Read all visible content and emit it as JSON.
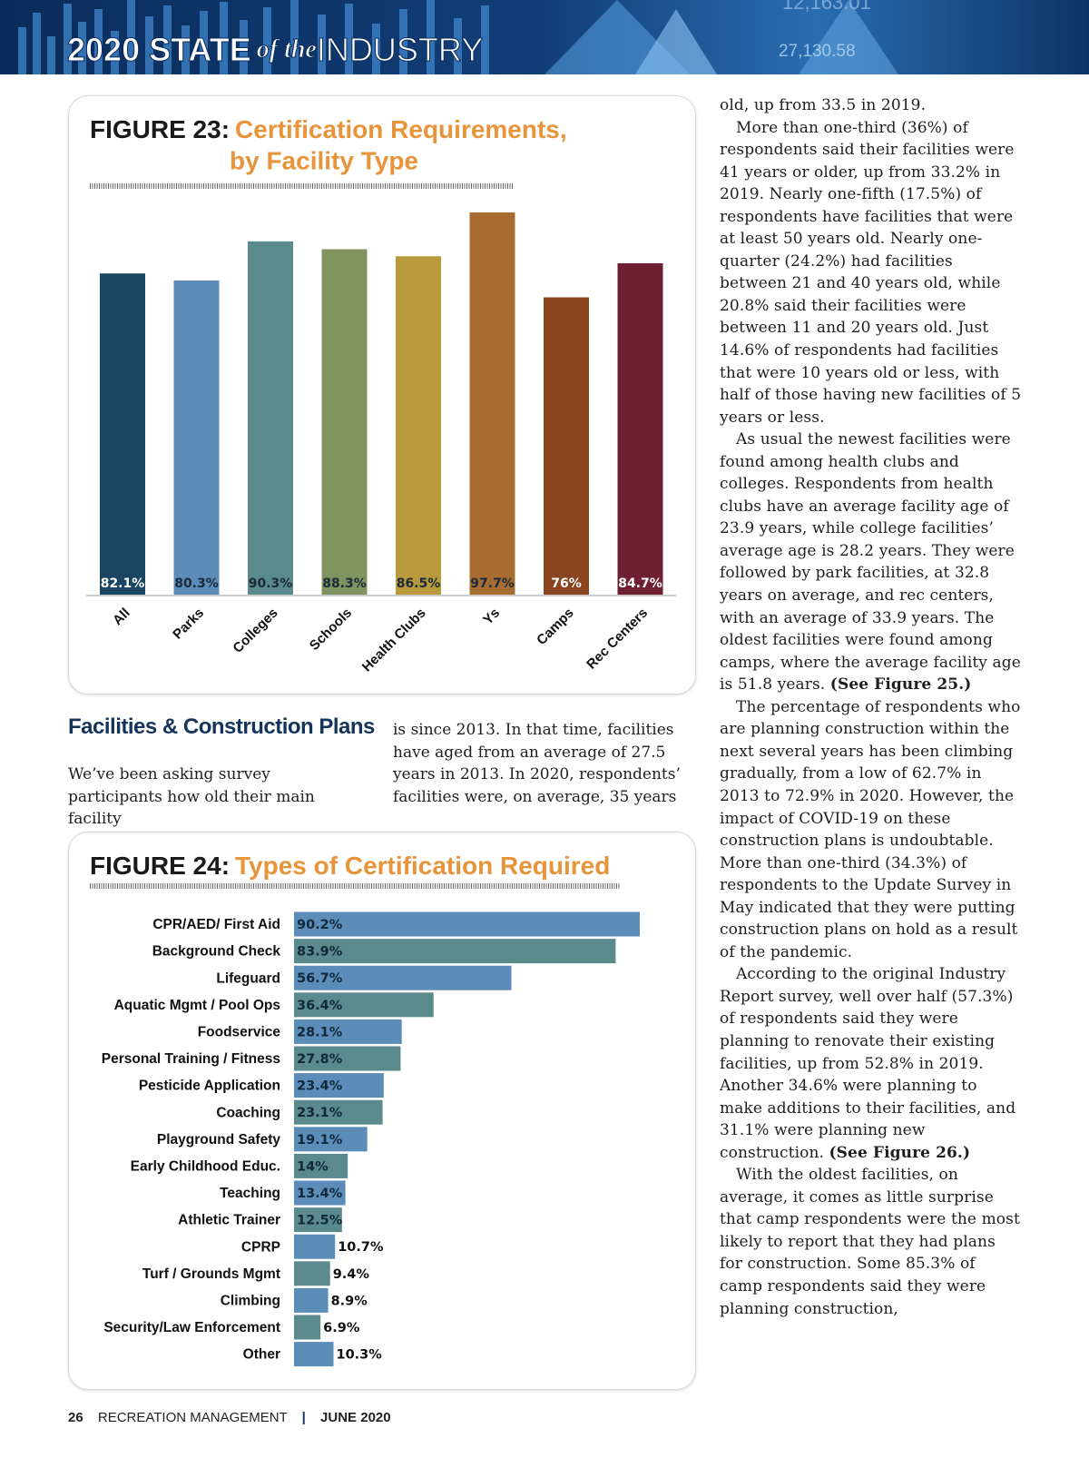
{
  "header": {
    "title_part1": "2020 STATE",
    "title_part2": "of the",
    "title_part3": "INDUSTRY",
    "ticker_1": "12,163.01",
    "ticker_2": "27,130.58"
  },
  "chart_data": [
    {
      "type": "bar",
      "figure_label": "FIGURE 23:",
      "title_lines": [
        "Certification Requirements,",
        "by Facility Type"
      ],
      "categories": [
        "All",
        "Parks",
        "Colleges",
        "Schools",
        "Health Clubs",
        "Ys",
        "Camps",
        "Rec Centers"
      ],
      "values": [
        82.1,
        80.3,
        90.3,
        88.3,
        86.5,
        97.7,
        76,
        84.7
      ],
      "value_labels": [
        "82.1%",
        "80.3%",
        "90.3%",
        "88.3%",
        "86.5%",
        "97.7%",
        "76%",
        "84.7%"
      ],
      "colors": [
        "#1a4560",
        "#5b8db8",
        "#5a8a8c",
        "#7f9460",
        "#b89a3c",
        "#a86c30",
        "#8a4520",
        "#6e1f30"
      ]
    },
    {
      "type": "hbar",
      "figure_label": "FIGURE 24:",
      "title_lines": [
        "Types of Certification Required"
      ],
      "categories": [
        "CPR/AED/ First Aid",
        "Background Check",
        "Lifeguard",
        "Aquatic Mgmt / Pool Ops",
        "Foodservice",
        "Personal Training / Fitness",
        "Pesticide Application",
        "Coaching",
        "Playground Safety",
        "Early Childhood Educ.",
        "Teaching",
        "Athletic Trainer",
        "CPRP",
        "Turf / Grounds Mgmt",
        "Climbing",
        "Security/Law Enforcement",
        "Other"
      ],
      "values": [
        90.2,
        83.9,
        56.7,
        36.4,
        28.1,
        27.8,
        23.4,
        23.1,
        19.1,
        14,
        13.4,
        12.5,
        10.7,
        9.4,
        8.9,
        6.9,
        10.3
      ],
      "value_labels": [
        "90.2%",
        "83.9%",
        "56.7%",
        "36.4%",
        "28.1%",
        "27.8%",
        "23.4%",
        "23.1%",
        "19.1%",
        "14%",
        "13.4%",
        "12.5%",
        "10.7%",
        "9.4%",
        "8.9%",
        "6.9%",
        "10.3%"
      ],
      "colors": [
        "#5b8db8",
        "#5a8a8c"
      ]
    }
  ],
  "article": {
    "heading": "Facilities & Construction Plans",
    "intro_col1": "We’ve been asking survey participants how old their main facility",
    "intro_col2": "is since 2013. In that time, facilities have aged from an average of 27.5 years in 2013. In 2020, respondents’ facilities were, on average, 35 years",
    "paragraphs": [
      {
        "text": "old, up from 33.5 in 2019."
      },
      {
        "text": "More than one-third (36%) of respondents said their facilities were 41 years or older, up from 33.2% in 2019. Nearly one-fifth (17.5%) of respondents have facilities that were at least 50 years old. Nearly one-quarter (24.2%) had facilities between 21 and 40 years old, while 20.8% said their facilities were between 11 and 20 years old. Just 14.6% of respondents had facilities that were 10 years old or less, with half of those having new facilities of 5 years or less."
      },
      {
        "text": "As usual the newest facilities were found among health clubs and colleges. Respondents from health clubs have an average facility age of 23.9 years, while college facilities’ average age is 28.2 years. They were followed by park facilities, at 32.8 years on average, and rec centers, with an average of 33.9 years. The oldest facilities were found among camps, where the average facility age is 51.8 years.",
        "ref": "(See Figure 25.)"
      },
      {
        "text": "The percentage of respondents who are planning construction within the next several years has been climbing gradually, from a low of 62.7% in 2013 to 72.9% in 2020. However, the impact of COVID-19 on these construction plans is undoubtable. More than one-third (34.3%) of respondents to the Update Survey in May indicated that they were putting construction plans on hold as a result of the pandemic."
      },
      {
        "text": "According to the original Industry Report survey, well over half (57.3%) of respondents said they were planning to renovate their existing facilities, up from 52.8% in 2019. Another 34.6% were planning to make additions to their facilities, and 31.1% were planning new construction.",
        "ref": "(See Figure 26.)"
      },
      {
        "text": "With the oldest facilities, on average, it comes as little surprise that camp respondents were the most likely to report that they had plans for construction. Some 85.3% of camp respondents said they were planning construction,"
      }
    ]
  },
  "footer": {
    "page": "26",
    "publication": "RECREATION MANAGEMENT",
    "issue": "JUNE 2020"
  }
}
